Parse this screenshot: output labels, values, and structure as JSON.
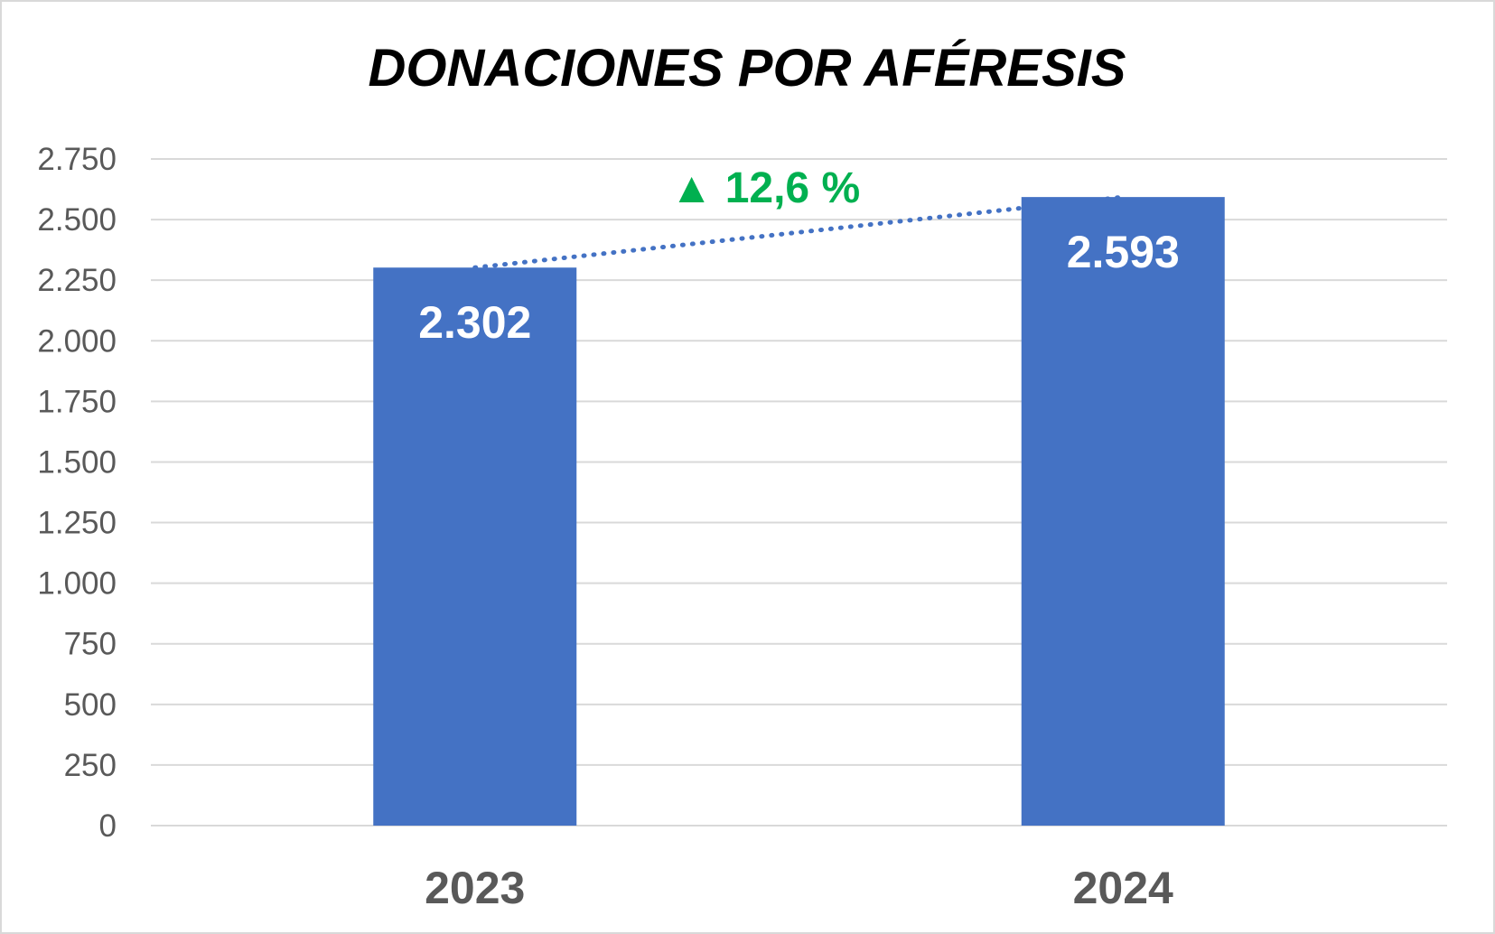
{
  "chart_data": {
    "type": "bar",
    "title": "DONACIONES POR AFÉRESIS",
    "xlabel": "",
    "ylabel": "",
    "categories": [
      "2023",
      "2024"
    ],
    "values": [
      2302,
      2593
    ],
    "data_labels": [
      "2.302",
      "2.593"
    ],
    "ylim": [
      0,
      2750
    ],
    "yticks": [
      0,
      250,
      500,
      750,
      1000,
      1250,
      1500,
      1750,
      2000,
      2250,
      2500,
      2750
    ],
    "ytick_labels": [
      "0",
      "250",
      "500",
      "750",
      "1.000",
      "1.250",
      "1.500",
      "1.750",
      "2.000",
      "2.250",
      "2.500",
      "2.750"
    ],
    "grid": true,
    "trendline": "dotted",
    "annotation": "▲ 12,6 %",
    "colors": {
      "bar": "#4472C4",
      "trend": "#4472C4",
      "annotation": "#00B050",
      "grid": "#D9D9D9",
      "text": "#595959"
    }
  }
}
